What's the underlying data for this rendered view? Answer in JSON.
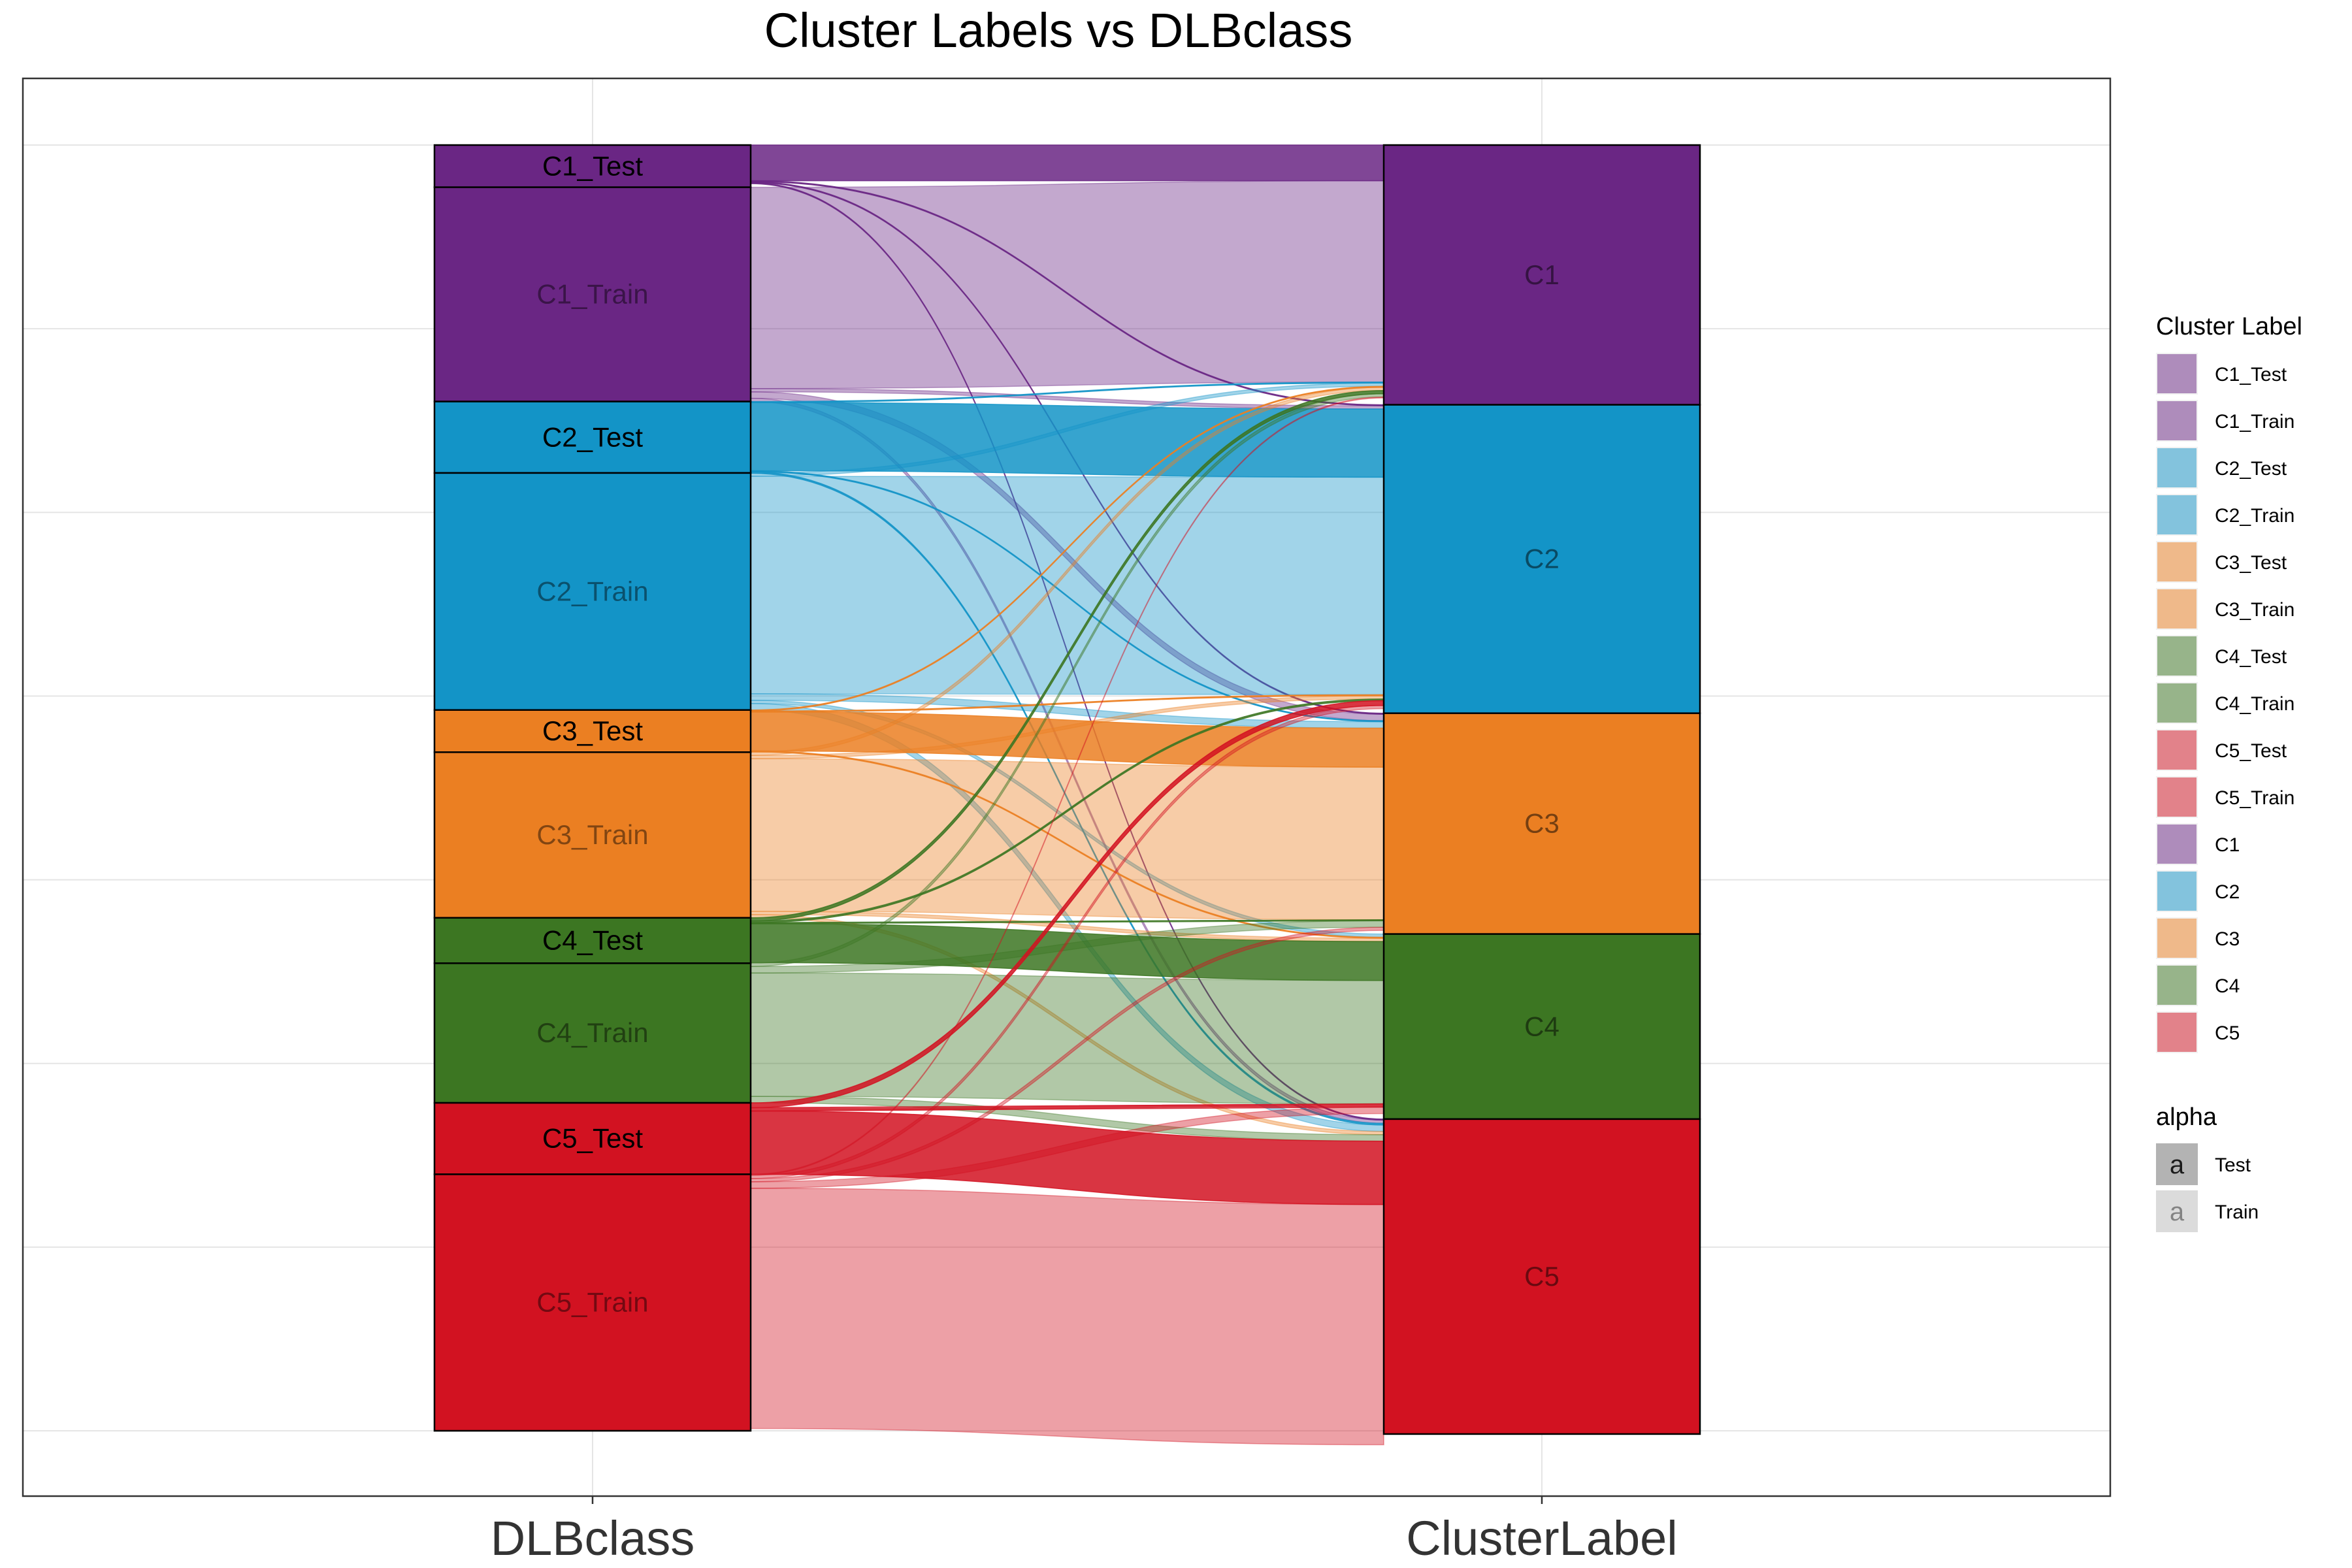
{
  "chart_data": {
    "type": "alluvial",
    "title": "Cluster Labels vs DLBclass",
    "axes": [
      "DLBclass",
      "ClusterLabel"
    ],
    "grid": true,
    "legend_placement": "right",
    "colors": {
      "C1": "#6a2684",
      "C2": "#1394c7",
      "C3": "#eb7f22",
      "C4": "#3c7622",
      "C5": "#d21221"
    },
    "dlbclass_strata": [
      {
        "label": "C1_Test",
        "cluster": "C1",
        "split": "Test",
        "value": 13
      },
      {
        "label": "C1_Train",
        "cluster": "C1",
        "split": "Train",
        "value": 66
      },
      {
        "label": "C2_Test",
        "cluster": "C2",
        "split": "Test",
        "value": 22
      },
      {
        "label": "C2_Train",
        "cluster": "C2",
        "split": "Train",
        "value": 73
      },
      {
        "label": "C3_Test",
        "cluster": "C3",
        "split": "Test",
        "value": 13
      },
      {
        "label": "C3_Train",
        "cluster": "C3",
        "split": "Train",
        "value": 51
      },
      {
        "label": "C4_Test",
        "cluster": "C4",
        "split": "Test",
        "value": 14
      },
      {
        "label": "C4_Train",
        "cluster": "C4",
        "split": "Train",
        "value": 43
      },
      {
        "label": "C5_Test",
        "cluster": "C5",
        "split": "Test",
        "value": 22
      },
      {
        "label": "C5_Train",
        "cluster": "C5",
        "split": "Train",
        "value": 79
      }
    ],
    "cluster_strata": [
      {
        "label": "C1",
        "value": 80
      },
      {
        "label": "C2",
        "value": 95
      },
      {
        "label": "C3",
        "value": 68
      },
      {
        "label": "C4",
        "value": 57
      },
      {
        "label": "C5",
        "value": 97
      }
    ],
    "flows": [
      {
        "from": "C1_Test",
        "to": "C1",
        "value": 11
      },
      {
        "from": "C1_Test",
        "to": "C2",
        "value": 0.3
      },
      {
        "from": "C1_Test",
        "to": "C3",
        "value": 0.3
      },
      {
        "from": "C1_Test",
        "to": "C5",
        "value": 0.3
      },
      {
        "from": "C1_Train",
        "to": "C1",
        "value": 62
      },
      {
        "from": "C1_Train",
        "to": "C2",
        "value": 1
      },
      {
        "from": "C1_Train",
        "to": "C3",
        "value": 2
      },
      {
        "from": "C1_Train",
        "to": "C5",
        "value": 1
      },
      {
        "from": "C2_Test",
        "to": "C1",
        "value": 0.3
      },
      {
        "from": "C2_Test",
        "to": "C2",
        "value": 21
      },
      {
        "from": "C2_Test",
        "to": "C3",
        "value": 0.3
      },
      {
        "from": "C2_Test",
        "to": "C5",
        "value": 0.5
      },
      {
        "from": "C2_Train",
        "to": "C1",
        "value": 1
      },
      {
        "from": "C2_Train",
        "to": "C2",
        "value": 67
      },
      {
        "from": "C2_Train",
        "to": "C3",
        "value": 2
      },
      {
        "from": "C2_Train",
        "to": "C4",
        "value": 1
      },
      {
        "from": "C2_Train",
        "to": "C5",
        "value": 2
      },
      {
        "from": "C3_Test",
        "to": "C1",
        "value": 0.3
      },
      {
        "from": "C3_Test",
        "to": "C2",
        "value": 0.3
      },
      {
        "from": "C3_Test",
        "to": "C3",
        "value": 12
      },
      {
        "from": "C3_Test",
        "to": "C4",
        "value": 0.3
      },
      {
        "from": "C3_Train",
        "to": "C1",
        "value": 1
      },
      {
        "from": "C3_Train",
        "to": "C2",
        "value": 1
      },
      {
        "from": "C3_Train",
        "to": "C3",
        "value": 47
      },
      {
        "from": "C3_Train",
        "to": "C4",
        "value": 1
      },
      {
        "from": "C3_Train",
        "to": "C5",
        "value": 1
      },
      {
        "from": "C4_Test",
        "to": "C1",
        "value": 1
      },
      {
        "from": "C4_Test",
        "to": "C2",
        "value": 0.5
      },
      {
        "from": "C4_Test",
        "to": "C3",
        "value": 0.3
      },
      {
        "from": "C4_Test",
        "to": "C4",
        "value": 12
      },
      {
        "from": "C4_Train",
        "to": "C1",
        "value": 1
      },
      {
        "from": "C4_Train",
        "to": "C3",
        "value": 2
      },
      {
        "from": "C4_Train",
        "to": "C4",
        "value": 38
      },
      {
        "from": "C4_Train",
        "to": "C5",
        "value": 2
      },
      {
        "from": "C5_Test",
        "to": "C2",
        "value": 1.5
      },
      {
        "from": "C5_Test",
        "to": "C4",
        "value": 1
      },
      {
        "from": "C5_Test",
        "to": "C5",
        "value": 19.5
      },
      {
        "from": "C5_Train",
        "to": "C1",
        "value": 0.3
      },
      {
        "from": "C5_Train",
        "to": "C2",
        "value": 1
      },
      {
        "from": "C5_Train",
        "to": "C3",
        "value": 1
      },
      {
        "from": "C5_Train",
        "to": "C4",
        "value": 2
      },
      {
        "from": "C5_Train",
        "to": "C5",
        "value": 74
      }
    ],
    "legend_fill": {
      "title": "Cluster Label",
      "items": [
        {
          "label": "C1_Test",
          "cluster": "C1"
        },
        {
          "label": "C1_Train",
          "cluster": "C1"
        },
        {
          "label": "C2_Test",
          "cluster": "C2"
        },
        {
          "label": "C2_Train",
          "cluster": "C2"
        },
        {
          "label": "C3_Test",
          "cluster": "C3"
        },
        {
          "label": "C3_Train",
          "cluster": "C3"
        },
        {
          "label": "C4_Test",
          "cluster": "C4"
        },
        {
          "label": "C4_Train",
          "cluster": "C4"
        },
        {
          "label": "C5_Test",
          "cluster": "C5"
        },
        {
          "label": "C5_Train",
          "cluster": "C5"
        },
        {
          "label": "C1",
          "cluster": "C1"
        },
        {
          "label": "C2",
          "cluster": "C2"
        },
        {
          "label": "C3",
          "cluster": "C3"
        },
        {
          "label": "C4",
          "cluster": "C4"
        },
        {
          "label": "C5",
          "cluster": "C5"
        }
      ]
    },
    "legend_alpha": {
      "title": "alpha",
      "key_glyph": "a",
      "items": [
        {
          "label": "Test",
          "alpha": 0.85
        },
        {
          "label": "Train",
          "alpha": 0.4
        }
      ]
    }
  }
}
